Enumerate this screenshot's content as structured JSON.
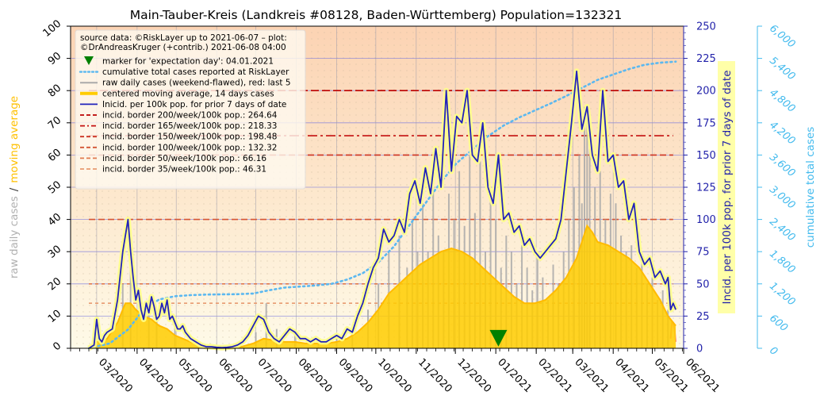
{
  "chart_data": {
    "type": "line",
    "title": "Main-Tauber-Kreis (Landkreis #08128, Baden-Württemberg) Population=132321",
    "left_axis_label_part1": "raw daily cases",
    "left_axis_label_sep": "/",
    "left_axis_label_part2": "moving average",
    "right_axis_label": "Incid. per 100k pop. for prior 7 days of date",
    "far_right_axis_label": "cumulative total cases",
    "left_ylim": [
      0,
      100
    ],
    "left_ticks": [
      "0",
      "10",
      "20",
      "30",
      "40",
      "50",
      "60",
      "70",
      "80",
      "90",
      "100"
    ],
    "right_ylim": [
      0,
      250
    ],
    "right_ticks": [
      "0",
      "25",
      "50",
      "75",
      "100",
      "125",
      "150",
      "175",
      "200",
      "225",
      "250"
    ],
    "far_right_ylim": [
      0,
      6000
    ],
    "far_right_ticks": [
      "0",
      "600",
      "1,200",
      "1,800",
      "2,400",
      "3,000",
      "3,600",
      "4,200",
      "4,800",
      "5,400",
      "6,000"
    ],
    "x_range_days": [
      0,
      470
    ],
    "x_range_comment_start": "2020-02-10",
    "x_ticks": [
      {
        "label": "03/2020",
        "day": 20
      },
      {
        "label": "04/2020",
        "day": 51
      },
      {
        "label": "05/2020",
        "day": 81
      },
      {
        "label": "06/2020",
        "day": 112
      },
      {
        "label": "07/2020",
        "day": 142
      },
      {
        "label": "08/2020",
        "day": 173
      },
      {
        "label": "09/2020",
        "day": 204
      },
      {
        "label": "10/2020",
        "day": 234
      },
      {
        "label": "11/2020",
        "day": 265
      },
      {
        "label": "12/2020",
        "day": 295
      },
      {
        "label": "01/2021",
        "day": 326
      },
      {
        "label": "02/2021",
        "day": 357
      },
      {
        "label": "03/2021",
        "day": 385
      },
      {
        "label": "04/2021",
        "day": 416
      },
      {
        "label": "05/2021",
        "day": 446
      },
      {
        "label": "06/2021",
        "day": 477
      }
    ],
    "grid": true,
    "legend": {
      "position": "top-left",
      "source_line1": "source data: ©RiskLayer up to 2021-06-07 – plot:",
      "source_line2": "©DrAndreasKruger (+contrib.) 2021-06-08 04:00",
      "entries": [
        {
          "label": "marker for 'expectation day': 04.01.2021",
          "style": "marker",
          "color": "#008000"
        },
        {
          "label": "cumulative total cases reported at RiskLayer",
          "style": "dotted",
          "color": "#5bb8f0"
        },
        {
          "label": "raw daily cases (weekend-flawed), red: last 5",
          "style": "solid-thin",
          "color": "#aaaaaa"
        },
        {
          "label": "centered moving average, 14 days cases",
          "style": "solid-thick",
          "color": "#ffcc00"
        },
        {
          "label": "Inicid. per 100k pop. for prior 7 days of date",
          "style": "solid",
          "color": "#2222bb"
        },
        {
          "label": "incid. border 200/week/100k pop.: 264.64",
          "style": "dashed",
          "color": "#bb0000"
        },
        {
          "label": "incid. border 165/week/100k pop.: 218.33",
          "style": "dashdot",
          "color": "#c41010"
        },
        {
          "label": "incid. border 150/week/100k pop.: 198.48",
          "style": "dashed",
          "color": "#cc3322"
        },
        {
          "label": "incid. border 100/week/100k pop.: 132.32",
          "style": "dashed",
          "color": "#d45533"
        },
        {
          "label": "incid. border   50/week/100k pop.: 66.16",
          "style": "dashed",
          "color": "#e07a50"
        },
        {
          "label": "incid. border   35/week/100k pop.: 46.31",
          "style": "dashed",
          "color": "#e89a70"
        }
      ]
    },
    "borders_left_units": [
      {
        "value": 80.0,
        "color": "#bb0000",
        "dash": "10,4"
      },
      {
        "value": 66.0,
        "color": "#c41010",
        "dash": "12,4,3,4"
      },
      {
        "value": 60.0,
        "color": "#cc3322",
        "dash": "8,4"
      },
      {
        "value": 40.0,
        "color": "#d45533",
        "dash": "8,4"
      },
      {
        "value": 20.0,
        "color": "#e07a50",
        "dash": "4,4"
      },
      {
        "value": 14.0,
        "color": "#e89a70",
        "dash": "4,4"
      }
    ],
    "expectation_marker": {
      "day": 328,
      "left_value": 3
    },
    "incidence_series": {
      "name": "Inicid. per 100k pop. for prior 7 days of date",
      "x": [
        14,
        18,
        20,
        22,
        24,
        26,
        28,
        32,
        36,
        40,
        44,
        46,
        48,
        50,
        52,
        54,
        56,
        58,
        60,
        62,
        64,
        66,
        68,
        70,
        72,
        74,
        76,
        78,
        80,
        82,
        84,
        86,
        88,
        92,
        96,
        100,
        104,
        108,
        112,
        116,
        120,
        124,
        128,
        132,
        136,
        140,
        144,
        148,
        152,
        156,
        160,
        164,
        168,
        172,
        176,
        180,
        184,
        188,
        192,
        196,
        200,
        204,
        208,
        212,
        216,
        220,
        224,
        228,
        232,
        236,
        240,
        244,
        248,
        252,
        256,
        260,
        264,
        268,
        272,
        276,
        280,
        284,
        288,
        292,
        296,
        300,
        304,
        308,
        312,
        316,
        320,
        324,
        328,
        332,
        336,
        340,
        344,
        348,
        352,
        356,
        360,
        364,
        368,
        372,
        376,
        380,
        384,
        388,
        392,
        396,
        400,
        404,
        408,
        412,
        416,
        420,
        424,
        428,
        432,
        436,
        440,
        444,
        448,
        452,
        456,
        458,
        460,
        462,
        464
      ],
      "y": [
        0,
        1,
        9,
        3,
        2,
        4,
        5,
        6,
        15,
        30,
        40,
        30,
        22,
        15,
        18,
        12,
        9,
        14,
        11,
        16,
        13,
        9,
        10,
        14,
        11,
        15,
        9,
        10,
        8,
        6,
        6,
        7,
        5,
        3,
        2,
        1,
        0.5,
        0.5,
        0.3,
        0.2,
        0.3,
        0.5,
        1,
        2,
        4,
        7,
        10,
        9,
        5,
        3,
        2,
        4,
        6,
        5,
        3,
        3,
        2,
        3,
        2,
        2,
        3,
        4,
        3,
        6,
        5,
        10,
        14,
        20,
        25,
        28,
        37,
        33,
        35,
        40,
        36,
        48,
        52,
        45,
        56,
        48,
        62,
        50,
        80,
        55,
        72,
        70,
        80,
        60,
        58,
        70,
        50,
        45,
        60,
        40,
        42,
        36,
        38,
        32,
        34,
        30,
        28,
        30,
        32,
        34,
        40,
        55,
        70,
        86,
        68,
        75,
        60,
        55,
        80,
        58,
        60,
        50,
        52,
        40,
        45,
        30,
        26,
        28,
        22,
        24,
        20,
        22,
        12,
        14,
        12
      ]
    },
    "moving_average_series": {
      "name": "centered moving average, 14 days cases",
      "x": [
        14,
        20,
        28,
        36,
        42,
        46,
        50,
        56,
        62,
        68,
        74,
        80,
        86,
        92,
        100,
        108,
        116,
        124,
        132,
        140,
        148,
        156,
        164,
        172,
        180,
        188,
        196,
        204,
        212,
        220,
        228,
        236,
        244,
        252,
        260,
        268,
        276,
        284,
        292,
        300,
        308,
        316,
        324,
        332,
        340,
        348,
        356,
        364,
        372,
        380,
        388,
        392,
        396,
        400,
        404,
        412,
        420,
        428,
        436,
        444,
        452,
        458,
        464
      ],
      "y": [
        0,
        2,
        3,
        8,
        14,
        14,
        12,
        10,
        9,
        7,
        6,
        4,
        3,
        2,
        1,
        0.5,
        0.3,
        0.3,
        0.6,
        1.5,
        3,
        2.5,
        2,
        2,
        1.5,
        1.5,
        1.5,
        2,
        3,
        5,
        8,
        12,
        17,
        20,
        23,
        26,
        28,
        30,
        31,
        30,
        28,
        25,
        22,
        19,
        16,
        14,
        14,
        15,
        18,
        22,
        28,
        33,
        38,
        36,
        33,
        32,
        30,
        28,
        25,
        20,
        15,
        10,
        7
      ]
    },
    "cumulative_series": {
      "name": "cumulative total cases reported at RiskLayer",
      "x": [
        14,
        30,
        44,
        56,
        68,
        80,
        92,
        104,
        116,
        128,
        140,
        152,
        164,
        176,
        188,
        200,
        212,
        224,
        236,
        248,
        260,
        272,
        284,
        296,
        308,
        320,
        332,
        344,
        356,
        368,
        380,
        392,
        404,
        416,
        428,
        440,
        452,
        464
      ],
      "y": [
        0,
        90,
        350,
        720,
        910,
        970,
        990,
        1000,
        1005,
        1008,
        1020,
        1080,
        1130,
        1150,
        1170,
        1200,
        1280,
        1400,
        1600,
        1900,
        2300,
        2700,
        3100,
        3450,
        3700,
        3950,
        4150,
        4300,
        4430,
        4560,
        4700,
        4850,
        5000,
        5100,
        5200,
        5280,
        5320,
        5340
      ]
    },
    "raw_daily_peaks": {
      "name": "raw daily cases (weekend-flawed), red: last 5",
      "x": [
        22,
        40,
        46,
        60,
        66,
        80,
        100,
        130,
        142,
        150,
        158,
        172,
        190,
        204,
        216,
        228,
        236,
        244,
        252,
        258,
        262,
        266,
        270,
        274,
        278,
        282,
        286,
        290,
        294,
        298,
        302,
        306,
        310,
        314,
        318,
        322,
        326,
        330,
        334,
        338,
        342,
        346,
        350,
        354,
        358,
        362,
        366,
        370,
        374,
        378,
        382,
        386,
        390,
        392,
        394,
        396,
        398,
        402,
        406,
        410,
        414,
        418,
        422,
        426,
        430,
        434,
        438,
        442,
        446,
        450,
        454,
        458
      ],
      "y": [
        3,
        20,
        25,
        15,
        12,
        8,
        1,
        2,
        5,
        14,
        6,
        5,
        3,
        4,
        6,
        12,
        20,
        30,
        35,
        25,
        40,
        30,
        45,
        30,
        50,
        35,
        30,
        48,
        40,
        55,
        38,
        60,
        42,
        58,
        30,
        48,
        40,
        25,
        35,
        30,
        20,
        32,
        25,
        18,
        28,
        22,
        15,
        26,
        20,
        30,
        40,
        50,
        60,
        45,
        75,
        70,
        62,
        50,
        55,
        40,
        48,
        45,
        35,
        30,
        32,
        25,
        28,
        20,
        22,
        15,
        18,
        12
      ]
    },
    "red_last_five": {
      "x": [
        460,
        461,
        462,
        463,
        464
      ],
      "y": [
        3,
        8,
        8,
        6,
        2
      ]
    }
  }
}
